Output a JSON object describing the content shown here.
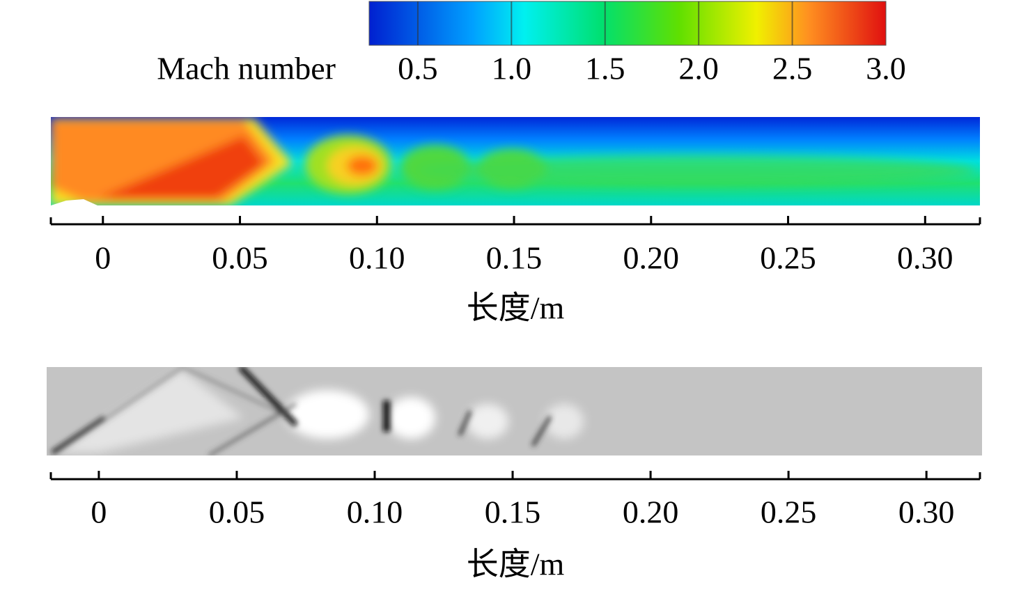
{
  "chart_data": [
    {
      "type": "colorbar",
      "title": "Mach number",
      "lim": [
        0.24,
        3.0
      ],
      "ticks": [
        0.5,
        {
          "value": 1.0,
          "label": "1.0"
        },
        1.5,
        {
          "value": 2.0,
          "label": "2.0"
        },
        2.5,
        {
          "value": 3.0,
          "label": "3.0"
        }
      ]
    },
    {
      "type": "field",
      "xlabel": "长度/m",
      "xlim": [
        -0.019,
        0.32
      ],
      "xticks": [
        0,
        0.05,
        {
          "value": 0.1,
          "label": "0.10"
        },
        0.15,
        {
          "value": 0.2,
          "label": "0.20"
        },
        0.25,
        {
          "value": 0.3,
          "label": "0.30"
        }
      ]
    },
    {
      "type": "field",
      "xlabel": "长度/m",
      "xlim": [
        -0.0174,
        0.3194
      ],
      "xticks": [
        0,
        0.05,
        {
          "value": 0.1,
          "label": "0.10"
        },
        0.15,
        {
          "value": 0.2,
          "label": "0.20"
        },
        0.25,
        {
          "value": 0.3,
          "label": "0.30"
        }
      ]
    }
  ]
}
